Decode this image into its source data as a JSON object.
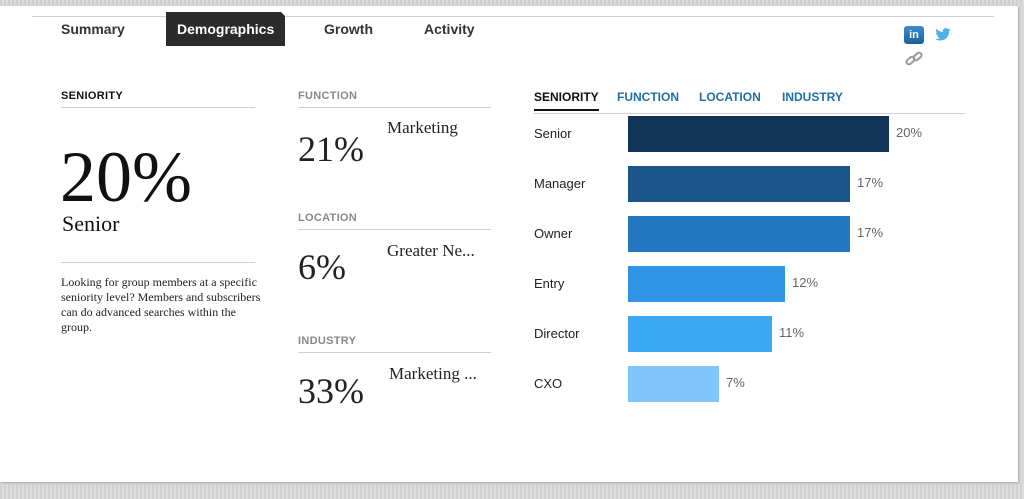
{
  "nav": {
    "tabs": [
      {
        "label": "Summary"
      },
      {
        "label": "Demographics"
      },
      {
        "label": "Growth"
      },
      {
        "label": "Activity"
      }
    ],
    "active_tab": "Demographics"
  },
  "share": {
    "linkedin": "in",
    "icons": [
      "linkedin-icon",
      "twitter-icon",
      "link-icon"
    ]
  },
  "seniority": {
    "heading": "SENIORITY",
    "percent": "20%",
    "label": "Senior",
    "description": "Looking for group members at a specific seniority level? Members and subscribers can do advanced searches within the group."
  },
  "function": {
    "heading": "FUNCTION",
    "percent": "21%",
    "label": "Marketing"
  },
  "location": {
    "heading": "LOCATION",
    "percent": "6%",
    "label": "Greater Ne..."
  },
  "industry": {
    "heading": "INDUSTRY",
    "percent": "33%",
    "label": "Marketing ..."
  },
  "breakdown": {
    "tabs": [
      {
        "label": "SENIORITY"
      },
      {
        "label": "FUNCTION"
      },
      {
        "label": "LOCATION"
      },
      {
        "label": "INDUSTRY"
      }
    ],
    "active_tab": "SENIORITY"
  },
  "chart_data": {
    "type": "bar",
    "orientation": "horizontal",
    "categories": [
      "Senior",
      "Manager",
      "Owner",
      "Entry",
      "Director",
      "CXO"
    ],
    "values": [
      20,
      17,
      17,
      12,
      11,
      7
    ],
    "value_labels": [
      "20%",
      "17%",
      "17%",
      "12%",
      "11%",
      "7%"
    ],
    "colors": [
      "#113456",
      "#1b5588",
      "#2277c0",
      "#2f95e6",
      "#3ba8f5",
      "#80c6fb"
    ],
    "xlim": [
      0,
      20
    ],
    "grid": false
  }
}
